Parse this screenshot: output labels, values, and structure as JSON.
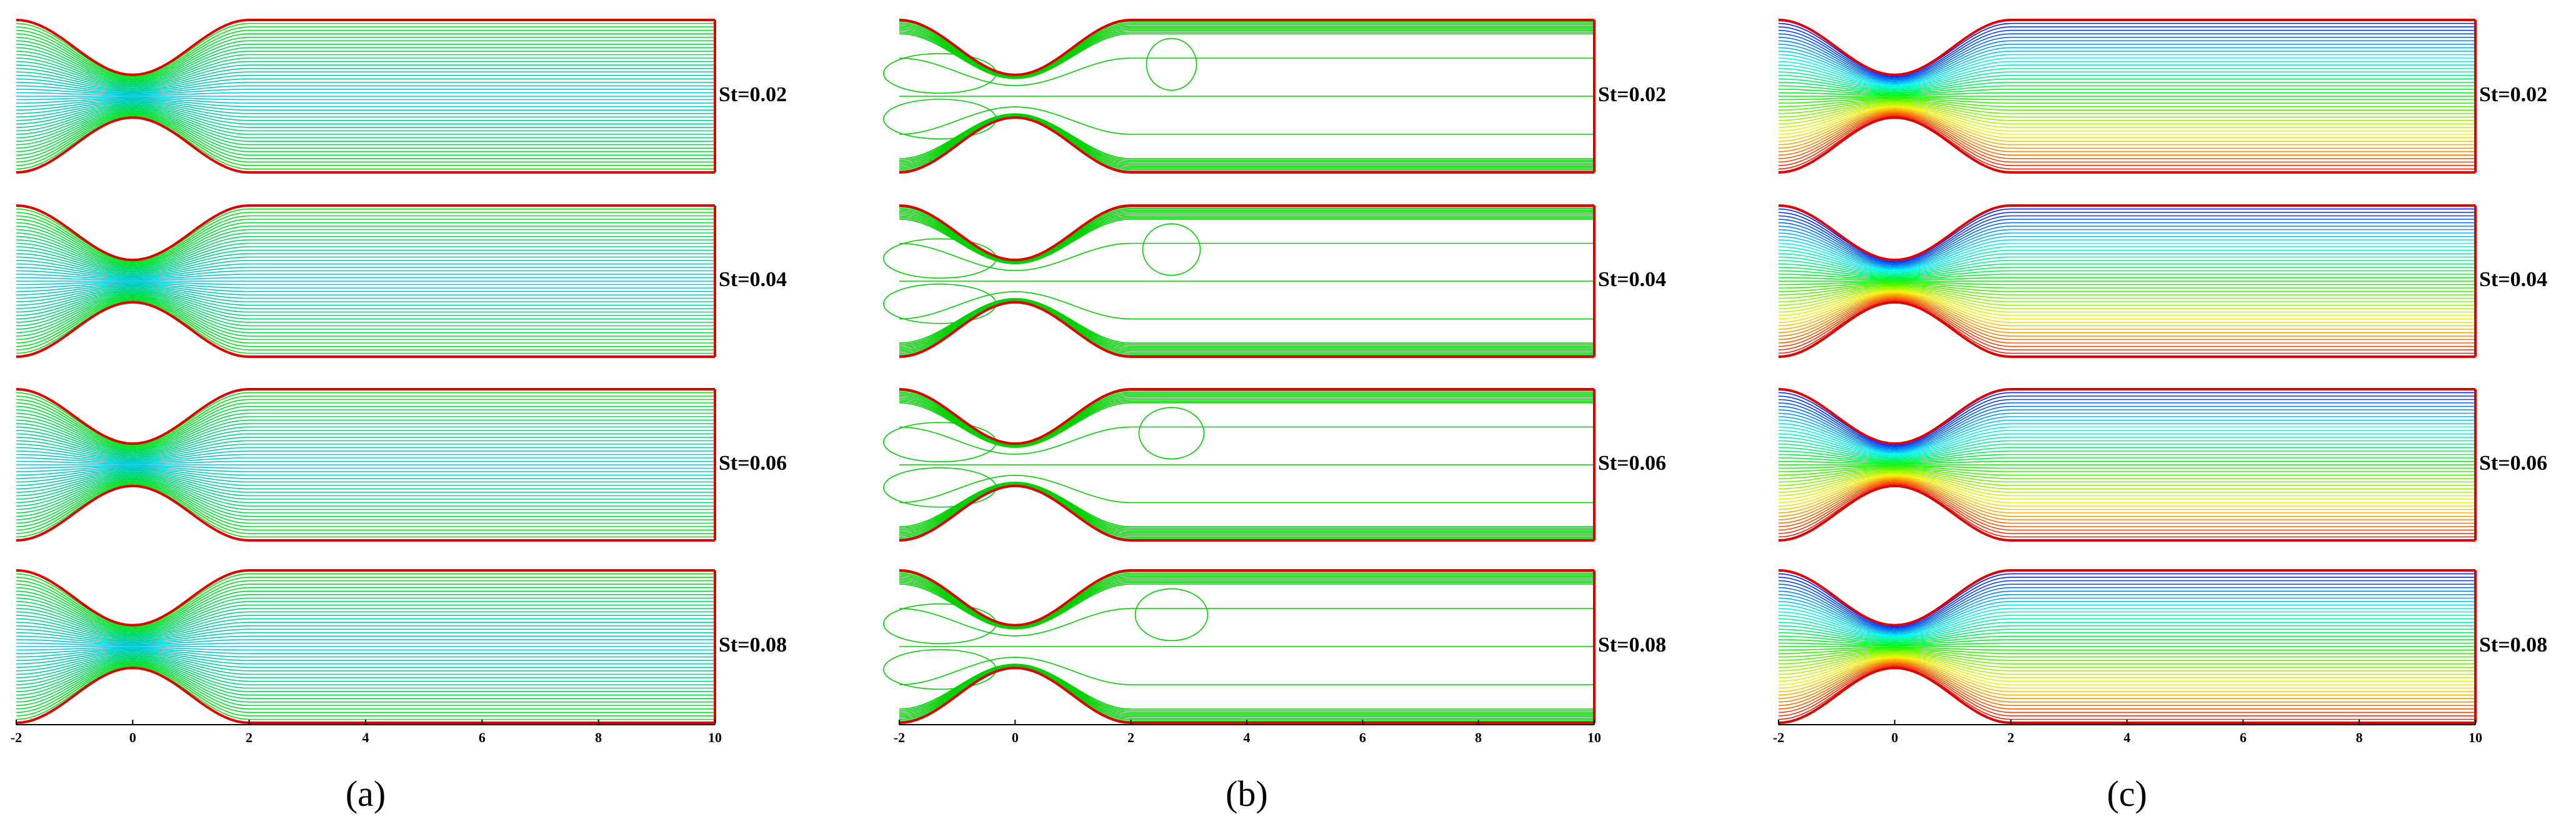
{
  "panels": [
    {
      "label": "(a)",
      "rows": [
        "St=0.02",
        "St=0.04",
        "St=0.06",
        "St=0.08"
      ],
      "xticks": [
        -2,
        0,
        2,
        4,
        6,
        8,
        10
      ]
    },
    {
      "label": "(b)",
      "rows": [
        "St=0.02",
        "St=0.04",
        "St=0.06",
        "St=0.08"
      ],
      "xticks": [
        -2,
        0,
        2,
        4,
        6,
        8,
        10
      ]
    },
    {
      "label": "(c)",
      "rows": [
        "St=0.02",
        "St=0.04",
        "St=0.06",
        "St=0.08"
      ],
      "xticks": [
        -2,
        0,
        2,
        4,
        6,
        8,
        10
      ]
    }
  ]
}
